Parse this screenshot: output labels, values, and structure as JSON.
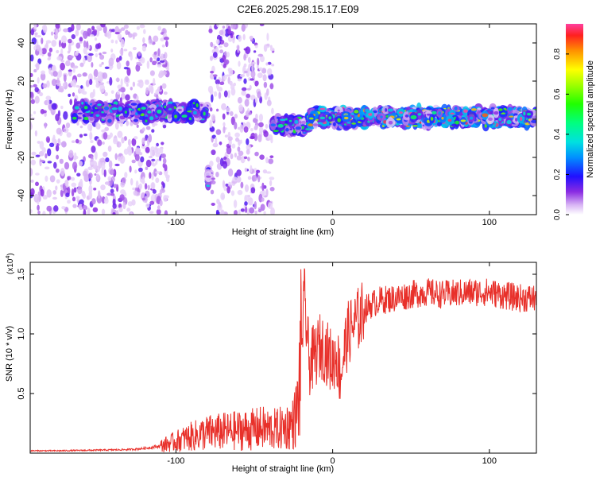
{
  "title": "C2E6.2025.298.15.17.E09",
  "chart_data": [
    {
      "type": "heatmap",
      "xlabel": "Height of straight line (km)",
      "ylabel": "Frequency (Hz)",
      "xlim": [
        -193,
        130
      ],
      "ylim": [
        -50,
        50
      ],
      "xticks": [
        -100,
        0,
        100
      ],
      "yticks": [
        -40,
        -20,
        0,
        20,
        40
      ],
      "colorbar": {
        "label": "Normalized spectral amplitude",
        "range": [
          0,
          0.95
        ],
        "ticks": [
          0.0,
          0.2,
          0.4,
          0.6,
          0.8
        ]
      },
      "features": [
        {
          "x_range": [
            -193,
            -105
          ],
          "description": "broadband scattered low-amplitude noise over full frequency range"
        },
        {
          "x_range": [
            -165,
            -80
          ],
          "freq_center": 4,
          "max_amplitude": 0.55
        },
        {
          "x_range": [
            -80,
            -78
          ],
          "freq_center": -30,
          "max_amplitude": 0.3
        },
        {
          "x_range": [
            -78,
            -38
          ],
          "description": "broadband noise band"
        },
        {
          "x_range": [
            -38,
            -15
          ],
          "freq_center": -3,
          "max_amplitude": 0.5
        },
        {
          "x_range": [
            -15,
            130
          ],
          "freq_center": 1,
          "max_amplitude": 0.95
        }
      ]
    },
    {
      "type": "line",
      "xlabel": "Height of straight line (km)",
      "ylabel": "SNR (10 * v/v)",
      "yscale_label": "(x10",
      "yscale_exp": "4",
      "yscale_close": ")",
      "xlim": [
        -193,
        130
      ],
      "ylim": [
        0,
        1.6
      ],
      "xticks": [
        -100,
        0,
        100
      ],
      "yticks": [
        0.5,
        1.0,
        1.5
      ],
      "color": "#e8302a",
      "series": [
        {
          "x": [
            -193,
            -175,
            -150,
            -130,
            -120,
            -110,
            -100,
            -90,
            -80,
            -70,
            -60,
            -50,
            -45,
            -40,
            -35,
            -30,
            -25,
            -22,
            -20,
            -18,
            -15,
            -12,
            -10,
            -8,
            -5,
            -2,
            0,
            2,
            5,
            8,
            10,
            12,
            15,
            18,
            20,
            25,
            30,
            40,
            50,
            60,
            70,
            80,
            90,
            100,
            110,
            120,
            130
          ],
          "y": [
            0.02,
            0.02,
            0.025,
            0.03,
            0.04,
            0.06,
            0.1,
            0.14,
            0.17,
            0.18,
            0.19,
            0.2,
            0.21,
            0.2,
            0.2,
            0.22,
            0.25,
            0.4,
            0.9,
            1.3,
            0.75,
            0.8,
            0.85,
            0.9,
            0.87,
            0.8,
            0.75,
            0.85,
            0.65,
            0.9,
            1.0,
            1.05,
            1.1,
            1.15,
            1.2,
            1.25,
            1.28,
            1.3,
            1.33,
            1.35,
            1.33,
            1.34,
            1.35,
            1.35,
            1.32,
            1.3,
            1.3
          ]
        }
      ]
    }
  ]
}
